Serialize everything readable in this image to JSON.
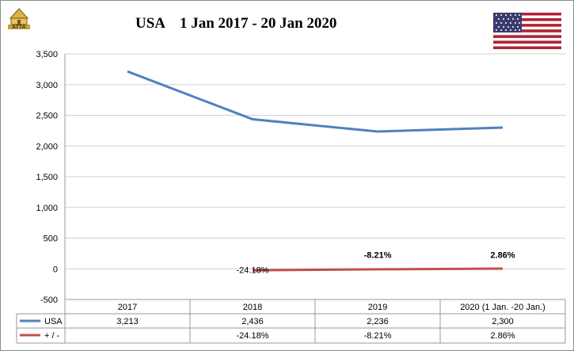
{
  "logo_text": "ATTA",
  "chart_data": {
    "type": "line",
    "title": "USA    1 Jan 2017 - 20 Jan 2020",
    "categories": [
      "2017",
      "2018",
      "2019",
      "2020 (1 Jan. -20 Jan.)"
    ],
    "ylim": [
      -500,
      3500
    ],
    "yticks": [
      "3,500",
      "3,000",
      "2,500",
      "2,000",
      "1,500",
      "1,000",
      "500",
      "0",
      "-500"
    ],
    "ytick_values": [
      3500,
      3000,
      2500,
      2000,
      1500,
      1000,
      500,
      0,
      -500
    ],
    "grid": true,
    "legend": "data-table",
    "series": [
      {
        "name": "USA",
        "color": "#4f81bd",
        "values": [
          3213,
          2436,
          2236,
          2300
        ],
        "table_labels": [
          "3,213",
          "2,436",
          "2,236",
          "2,300"
        ]
      },
      {
        "name": "+ / -",
        "color": "#c0504d",
        "values": [
          null,
          -24.18,
          -8.21,
          2.86
        ],
        "table_labels": [
          "",
          "-24.18%",
          "-8.21%",
          "2.86%"
        ],
        "data_labels": [
          "",
          "-24.18%",
          "-8.21%",
          "2.86%"
        ]
      }
    ]
  }
}
